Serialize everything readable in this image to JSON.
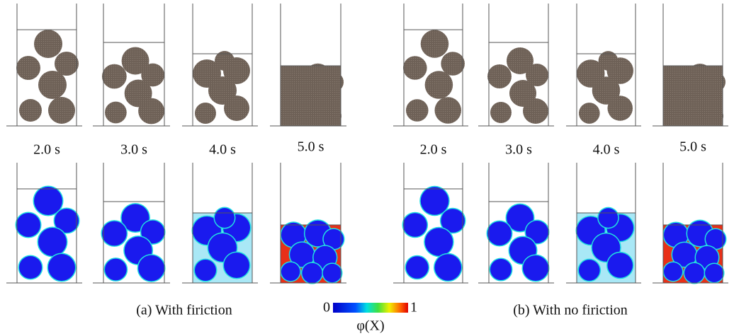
{
  "groups": [
    {
      "time_labels": [
        "2.0 s",
        "3.0 s",
        "4.0 s",
        "5.0 s"
      ],
      "caption": "(a) With firiction"
    },
    {
      "time_labels": [
        "2.0 s",
        "3.0 s",
        "4.0 s",
        "5.0 s"
      ],
      "caption": "(b) With no firiction"
    }
  ],
  "colorbar": {
    "min": 0,
    "max": 1,
    "label": "φ(X)"
  }
}
